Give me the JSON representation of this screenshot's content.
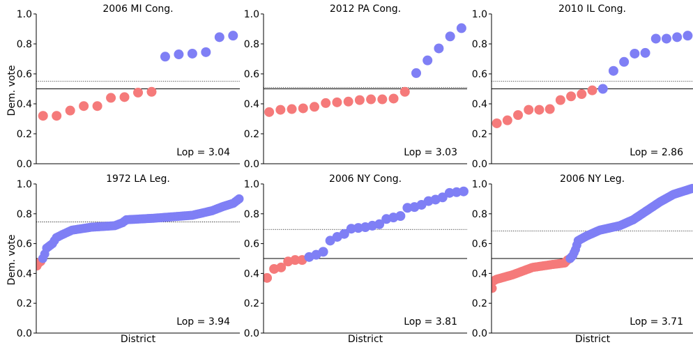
{
  "figure": {
    "ylabel": "Dem. vote",
    "xlabel": "District",
    "colors": {
      "dem": "#7f7ff5",
      "rep": "#f57a7a",
      "axis": "#000000"
    }
  },
  "chart_data": [
    {
      "type": "scatter",
      "title": "2006 MI Cong.",
      "annotation": "Lop = 3.04",
      "ylim": [
        0,
        1
      ],
      "yticks": [
        "0.0",
        "0.2",
        "0.4",
        "0.6",
        "0.8",
        "1.0"
      ],
      "threshold": 0.5,
      "mean_line": 0.55,
      "values": [
        0.32,
        0.32,
        0.355,
        0.385,
        0.385,
        0.44,
        0.445,
        0.475,
        0.48,
        0.715,
        0.73,
        0.735,
        0.745,
        0.845,
        0.855
      ]
    },
    {
      "type": "scatter",
      "title": "2012 PA Cong.",
      "annotation": "Lop = 3.03",
      "ylim": [
        0,
        1
      ],
      "yticks": [
        "0.0",
        "0.2",
        "0.4",
        "0.6",
        "0.8",
        "1.0"
      ],
      "threshold": 0.5,
      "mean_line": 0.51,
      "values": [
        0.345,
        0.36,
        0.365,
        0.37,
        0.38,
        0.405,
        0.41,
        0.415,
        0.425,
        0.43,
        0.43,
        0.435,
        0.48,
        0.605,
        0.69,
        0.77,
        0.85,
        0.905
      ]
    },
    {
      "type": "scatter",
      "title": "2010 IL Cong.",
      "annotation": "Lop = 2.86",
      "ylim": [
        0,
        1
      ],
      "yticks": [
        "0.0",
        "0.2",
        "0.4",
        "0.6",
        "0.8",
        "1.0"
      ],
      "threshold": 0.5,
      "mean_line": 0.55,
      "values": [
        0.27,
        0.29,
        0.325,
        0.36,
        0.36,
        0.365,
        0.425,
        0.45,
        0.465,
        0.49,
        0.5,
        0.62,
        0.68,
        0.735,
        0.74,
        0.835,
        0.835,
        0.845,
        0.855
      ]
    },
    {
      "type": "scatter",
      "title": "1972 LA Leg.",
      "annotation": "Lop = 3.94",
      "ylim": [
        0,
        1
      ],
      "yticks": [
        "0.0",
        "0.2",
        "0.4",
        "0.6",
        "0.8",
        "1.0"
      ],
      "threshold": 0.5,
      "mean_line": 0.745,
      "curve": {
        "count": 105,
        "points": [
          [
            0,
            0.45
          ],
          [
            1,
            0.47
          ],
          [
            2,
            0.48
          ],
          [
            3,
            0.5
          ],
          [
            4,
            0.53
          ],
          [
            5,
            0.57
          ],
          [
            8,
            0.6
          ],
          [
            10,
            0.64
          ],
          [
            13,
            0.66
          ],
          [
            18,
            0.69
          ],
          [
            28,
            0.71
          ],
          [
            40,
            0.72
          ],
          [
            44,
            0.74
          ],
          [
            46,
            0.76
          ],
          [
            60,
            0.77
          ],
          [
            70,
            0.78
          ],
          [
            80,
            0.79
          ],
          [
            90,
            0.82
          ],
          [
            96,
            0.85
          ],
          [
            101,
            0.87
          ],
          [
            104,
            0.9
          ]
        ]
      }
    },
    {
      "type": "scatter",
      "title": "2006 NY Cong.",
      "annotation": "Lop = 3.81",
      "ylim": [
        0,
        1
      ],
      "yticks": [
        "0.0",
        "0.2",
        "0.4",
        "0.6",
        "0.8",
        "1.0"
      ],
      "threshold": 0.5,
      "mean_line": 0.695,
      "values": [
        0.37,
        0.43,
        0.44,
        0.48,
        0.49,
        0.49,
        0.51,
        0.525,
        0.545,
        0.62,
        0.645,
        0.665,
        0.7,
        0.705,
        0.71,
        0.72,
        0.73,
        0.765,
        0.775,
        0.785,
        0.84,
        0.845,
        0.86,
        0.885,
        0.895,
        0.91,
        0.94,
        0.945,
        0.95
      ]
    },
    {
      "type": "scatter",
      "title": "2006 NY Leg.",
      "annotation": "Lop = 3.71",
      "ylim": [
        0,
        1
      ],
      "yticks": [
        "0.0",
        "0.2",
        "0.4",
        "0.6",
        "0.8",
        "1.0"
      ],
      "threshold": 0.5,
      "mean_line": 0.685,
      "curve": {
        "count": 150,
        "points": [
          [
            0,
            0.3
          ],
          [
            1,
            0.35
          ],
          [
            3,
            0.36
          ],
          [
            15,
            0.39
          ],
          [
            30,
            0.44
          ],
          [
            45,
            0.46
          ],
          [
            54,
            0.47
          ],
          [
            56,
            0.49
          ],
          [
            58,
            0.5
          ],
          [
            60,
            0.52
          ],
          [
            62,
            0.56
          ],
          [
            64,
            0.62
          ],
          [
            70,
            0.65
          ],
          [
            80,
            0.69
          ],
          [
            95,
            0.72
          ],
          [
            105,
            0.76
          ],
          [
            115,
            0.82
          ],
          [
            125,
            0.88
          ],
          [
            135,
            0.93
          ],
          [
            149,
            0.97
          ]
        ]
      }
    }
  ]
}
